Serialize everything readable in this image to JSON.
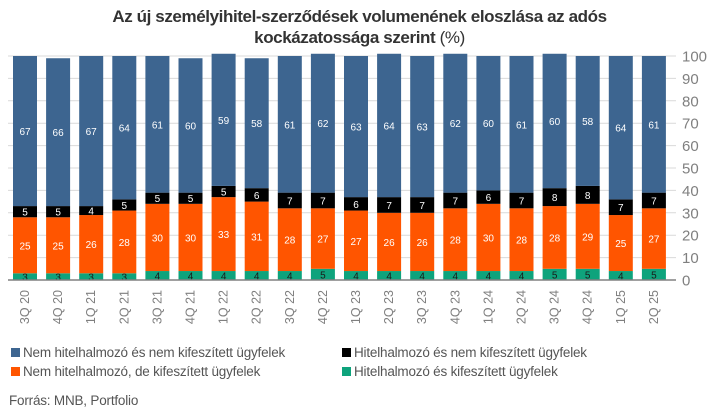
{
  "chart_data": {
    "type": "bar",
    "stacked": true,
    "title": "Az új személyihitel-szerződések volumenének eloszlása az adós kockázatossága szerint",
    "title_line1": "Az új személyihitel-szerződések volumenének eloszlása az adós",
    "title_line2": "kockázatossága szerint",
    "title_unit": "(%)",
    "xlabel": "",
    "ylabel": "",
    "ylim": [
      0,
      100
    ],
    "yticks": [
      0,
      10,
      20,
      30,
      40,
      50,
      60,
      70,
      80,
      90,
      100
    ],
    "y_axis_position": "right",
    "grid": true,
    "legend_position": "bottom",
    "categories": [
      "3Q 20",
      "4Q 20",
      "1Q 21",
      "2Q 21",
      "3Q 21",
      "4Q 21",
      "1Q 22",
      "2Q 22",
      "3Q 22",
      "4Q 22",
      "1Q 23",
      "2Q 23",
      "3Q 23",
      "4Q 23",
      "1Q 24",
      "2Q 24",
      "3Q 24",
      "4Q 24",
      "1Q 25",
      "2Q 25"
    ],
    "series": [
      {
        "name": "Hitelhalmozó és kifeszített ügyfelek",
        "color": "#0ea37c",
        "label_color": "#1a1a1a",
        "values": [
          3,
          3,
          3,
          3,
          4,
          4,
          4,
          4,
          4,
          5,
          4,
          4,
          4,
          4,
          4,
          4,
          5,
          5,
          4,
          5
        ]
      },
      {
        "name": "Nem hitelhalmozó, de kifeszített ügyfelek",
        "color": "#ff5500",
        "label_color": "#ffffff",
        "values": [
          25,
          25,
          26,
          28,
          30,
          30,
          33,
          31,
          28,
          27,
          27,
          26,
          26,
          28,
          30,
          28,
          28,
          29,
          25,
          27
        ]
      },
      {
        "name": "Hitelhalmozó és nem kifeszített ügyfelek",
        "color": "#000000",
        "label_color": "#ffffff",
        "values": [
          5,
          5,
          4,
          5,
          5,
          5,
          5,
          6,
          7,
          7,
          6,
          7,
          7,
          7,
          6,
          7,
          8,
          8,
          7,
          7
        ]
      },
      {
        "name": "Nem hitelhalmozó és nem kifeszített ügyfelek",
        "color": "#3d6590",
        "label_color": "#ffffff",
        "values": [
          67,
          66,
          67,
          64,
          61,
          60,
          59,
          58,
          61,
          62,
          63,
          64,
          63,
          62,
          60,
          61,
          60,
          58,
          64,
          61
        ]
      }
    ]
  },
  "legend": [
    {
      "label": "Nem hitelhalmozó és nem kifeszített ügyfelek",
      "color": "#3d6590"
    },
    {
      "label": "Hitelhalmozó és nem kifeszített ügyfelek",
      "color": "#000000"
    },
    {
      "label": "Nem hitelhalmozó, de kifeszített ügyfelek",
      "color": "#ff5500"
    },
    {
      "label": "Hitelhalmozó és kifeszített ügyfelek",
      "color": "#0ea37c"
    }
  ],
  "source": "Forrás: MNB, Portfolio"
}
